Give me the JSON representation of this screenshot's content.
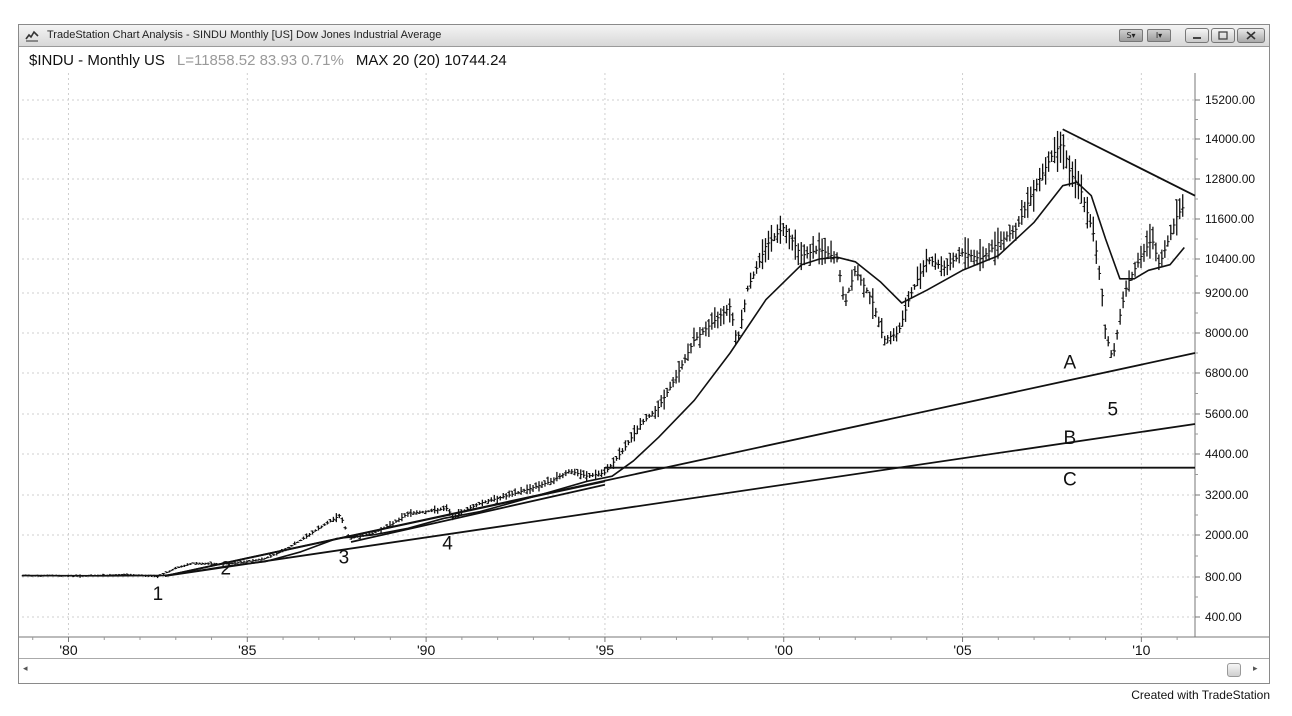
{
  "window": {
    "title": "TradeStation Chart Analysis - SINDU Monthly [US] Dow Jones Industrial Average",
    "toolbar_buttons": [
      "S▾",
      "I▾"
    ],
    "window_controls": [
      "minimize-icon",
      "restore-icon",
      "close-icon"
    ]
  },
  "header": {
    "symbol": "$INDU - Monthly US",
    "quote": "L=11858.52  83.93 0.71%",
    "indicator": "MAX 20 (20) 10744.24"
  },
  "footer": "Created with TradeStation",
  "chart_data": {
    "type": "bar",
    "title": "",
    "xlabel": "",
    "ylabel": "",
    "x_range": [
      1978.7,
      2011.5
    ],
    "x_tick_values": [
      1980,
      1985,
      1990,
      1995,
      2000,
      2005,
      2010
    ],
    "x_tick_labels": [
      "'80",
      "'85",
      "'90",
      "'95",
      "'00",
      "'05",
      "'10"
    ],
    "y_tick_labels": [
      "15200.00",
      "14000.00",
      "12800.00",
      "11600.00",
      "10400.00",
      "9200.00",
      "8000.00",
      "6800.00",
      "5600.00",
      "4400.00",
      "3200.00",
      "2000.00",
      "800.00",
      "400.00"
    ],
    "y_axis_side": "right",
    "grid": true,
    "series": [
      {
        "kind": "ohlc-monthly-bars",
        "close_points": [
          [
            1978.7,
            840
          ],
          [
            1979.5,
            840
          ],
          [
            1980.5,
            830
          ],
          [
            1981.5,
            870
          ],
          [
            1982.5,
            820
          ],
          [
            1983.0,
            1050
          ],
          [
            1983.5,
            1200
          ],
          [
            1984.2,
            1160
          ],
          [
            1984.6,
            1190
          ],
          [
            1985.0,
            1240
          ],
          [
            1985.5,
            1330
          ],
          [
            1986.0,
            1550
          ],
          [
            1986.5,
            1850
          ],
          [
            1987.0,
            2200
          ],
          [
            1987.6,
            2600
          ],
          [
            1987.85,
            1900
          ],
          [
            1988.5,
            2050
          ],
          [
            1989.0,
            2300
          ],
          [
            1989.5,
            2650
          ],
          [
            1990.0,
            2700
          ],
          [
            1990.6,
            2800
          ],
          [
            1990.75,
            2500
          ],
          [
            1991.0,
            2700
          ],
          [
            1991.5,
            2950
          ],
          [
            1992.5,
            3250
          ],
          [
            1993.5,
            3600
          ],
          [
            1994.0,
            3900
          ],
          [
            1994.5,
            3750
          ],
          [
            1995.0,
            3850
          ],
          [
            1995.5,
            4500
          ],
          [
            1996.0,
            5300
          ],
          [
            1996.5,
            5800
          ],
          [
            1997.0,
            6700
          ],
          [
            1997.5,
            7800
          ],
          [
            1998.0,
            8300
          ],
          [
            1998.5,
            8800
          ],
          [
            1998.7,
            7700
          ],
          [
            1999.0,
            9400
          ],
          [
            1999.5,
            10800
          ],
          [
            2000.0,
            11350
          ],
          [
            2000.5,
            10500
          ],
          [
            2001.0,
            10700
          ],
          [
            2001.5,
            10400
          ],
          [
            2001.7,
            8800
          ],
          [
            2002.0,
            10000
          ],
          [
            2002.5,
            8900
          ],
          [
            2002.8,
            7800
          ],
          [
            2003.2,
            8000
          ],
          [
            2003.5,
            9000
          ],
          [
            2004.0,
            10400
          ],
          [
            2004.5,
            10100
          ],
          [
            2005.0,
            10600
          ],
          [
            2005.5,
            10400
          ],
          [
            2006.0,
            10900
          ],
          [
            2006.5,
            11300
          ],
          [
            2007.0,
            12500
          ],
          [
            2007.5,
            13500
          ],
          [
            2007.8,
            13900
          ],
          [
            2008.0,
            13000
          ],
          [
            2008.3,
            12500
          ],
          [
            2008.7,
            11000
          ],
          [
            2008.9,
            9200
          ],
          [
            2009.0,
            8000
          ],
          [
            2009.2,
            7200
          ],
          [
            2009.4,
            8500
          ],
          [
            2009.6,
            9500
          ],
          [
            2010.0,
            10500
          ],
          [
            2010.3,
            11000
          ],
          [
            2010.5,
            10200
          ],
          [
            2010.8,
            11100
          ],
          [
            2011.0,
            11700
          ],
          [
            2011.2,
            12000
          ]
        ]
      },
      {
        "name": "MAX 20",
        "kind": "moving-average",
        "points": [
          [
            1978.7,
            840
          ],
          [
            1981.0,
            835
          ],
          [
            1982.7,
            845
          ],
          [
            1983.5,
            960
          ],
          [
            1984.5,
            1120
          ],
          [
            1985.5,
            1240
          ],
          [
            1986.5,
            1520
          ],
          [
            1987.5,
            1900
          ],
          [
            1988.5,
            2000
          ],
          [
            1989.5,
            2200
          ],
          [
            1990.5,
            2500
          ],
          [
            1991.5,
            2700
          ],
          [
            1992.5,
            3000
          ],
          [
            1993.5,
            3300
          ],
          [
            1994.5,
            3600
          ],
          [
            1995.2,
            3750
          ],
          [
            1995.8,
            4200
          ],
          [
            1996.5,
            4900
          ],
          [
            1997.5,
            6000
          ],
          [
            1998.5,
            7400
          ],
          [
            1999.5,
            9000
          ],
          [
            2000.5,
            10200
          ],
          [
            2001.0,
            10400
          ],
          [
            2001.5,
            10450
          ],
          [
            2002.0,
            10300
          ],
          [
            2002.7,
            9600
          ],
          [
            2003.3,
            8900
          ],
          [
            2004.0,
            9300
          ],
          [
            2005.0,
            10000
          ],
          [
            2006.0,
            10500
          ],
          [
            2007.0,
            11500
          ],
          [
            2007.8,
            12600
          ],
          [
            2008.2,
            12700
          ],
          [
            2008.6,
            12300
          ],
          [
            2009.0,
            11000
          ],
          [
            2009.4,
            9700
          ],
          [
            2009.8,
            9700
          ],
          [
            2010.2,
            10000
          ],
          [
            2010.8,
            10200
          ],
          [
            2011.2,
            10744
          ]
        ]
      }
    ],
    "trendlines": [
      {
        "from": [
          1982.7,
          830
        ],
        "to": [
          2011.5,
          7400
        ]
      },
      {
        "from": [
          1982.7,
          830
        ],
        "to": [
          2011.5,
          5300
        ]
      },
      {
        "from": [
          1995.0,
          4000
        ],
        "to": [
          2011.5,
          4000
        ]
      },
      {
        "from": [
          1982.7,
          830
        ],
        "to": [
          1995.0,
          3600
        ]
      },
      {
        "from": [
          1987.9,
          1800
        ],
        "to": [
          1995.0,
          3500
        ]
      },
      {
        "from": [
          2007.8,
          14300
        ],
        "to": [
          2011.5,
          12300
        ]
      }
    ],
    "annotations": [
      {
        "text": "1",
        "x": 1982.5,
        "y": 570
      },
      {
        "text": "2",
        "x": 1984.4,
        "y": 870
      },
      {
        "text": "3",
        "x": 1987.7,
        "y": 1180
      },
      {
        "text": "4",
        "x": 1990.6,
        "y": 1590
      },
      {
        "text": "5",
        "x": 2009.2,
        "y": 5550
      },
      {
        "text": "A",
        "x": 2008.0,
        "y": 6940
      },
      {
        "text": "B",
        "x": 2008.0,
        "y": 4700
      },
      {
        "text": "C",
        "x": 2008.0,
        "y": 3480
      }
    ]
  }
}
